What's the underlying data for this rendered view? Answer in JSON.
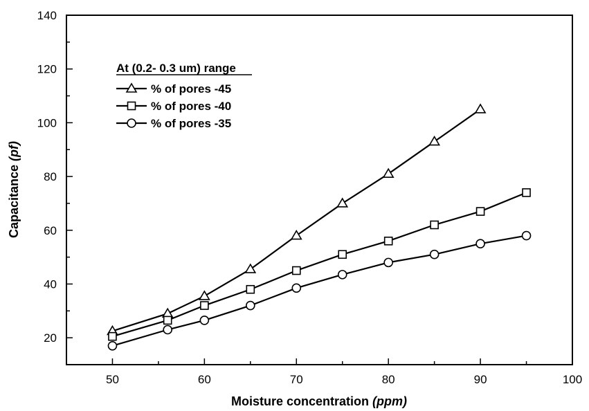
{
  "chart_data": {
    "type": "line",
    "xlabel": "Moisture concentration",
    "xlabel_unit": "(ppm)",
    "ylabel": "Capacitance",
    "ylabel_unit": "(pf)",
    "xlim": [
      45,
      100
    ],
    "ylim": [
      10,
      140
    ],
    "xticks": [
      50,
      60,
      70,
      80,
      90,
      100
    ],
    "yticks": [
      20,
      40,
      60,
      80,
      100,
      120,
      140
    ],
    "grid": false,
    "legend_title": "At (0.2- 0.3 um) range",
    "legend_placement": "top-left",
    "series": [
      {
        "name": "% of pores -45",
        "marker": "triangle",
        "x": [
          50,
          56,
          60,
          65,
          70,
          75,
          80,
          85,
          90
        ],
        "y": [
          22.5,
          29,
          35.5,
          45.5,
          58,
          70,
          81,
          93,
          105
        ]
      },
      {
        "name": "% of pores -40",
        "marker": "square",
        "x": [
          50,
          56,
          60,
          65,
          70,
          75,
          80,
          85,
          90,
          95
        ],
        "y": [
          20.5,
          26.5,
          32,
          38,
          45,
          51,
          56,
          62,
          67,
          74
        ]
      },
      {
        "name": "% of pores -35",
        "marker": "circle",
        "x": [
          50,
          56,
          60,
          65,
          70,
          75,
          80,
          85,
          90,
          95
        ],
        "y": [
          17,
          23,
          26.5,
          32,
          38.5,
          43.5,
          48,
          51,
          55,
          58
        ]
      }
    ]
  }
}
